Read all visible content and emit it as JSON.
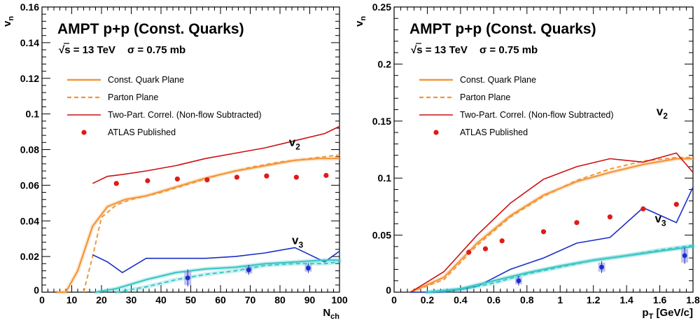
{
  "colors": {
    "quark": "#f2973a",
    "parton": "#f2973a",
    "twopart": "#cc1111",
    "atlas": "#e01a1a",
    "v3line": "#1a2ec8",
    "v3band": "#3cc6c6",
    "v3atlas": "#1a2ec8",
    "v3box": "#8c8ce6"
  },
  "chart_data": [
    {
      "type": "line",
      "title": "AMPT p+p (Const. Quarks)",
      "energy": "√s = 13 TeV",
      "sigma": "σ = 0.75 mb",
      "xlabel": "N",
      "xlabel_sub": "ch",
      "ylabel": "v",
      "ylabel_sub": "n",
      "xlim": [
        0,
        100
      ],
      "ylim": [
        0,
        0.16
      ],
      "xticks": [
        0,
        10,
        20,
        30,
        40,
        50,
        60,
        70,
        80,
        90,
        100
      ],
      "xtick_labels": [
        "0",
        "10",
        "20",
        "30",
        "40",
        "50",
        "60",
        "70",
        "80",
        "90",
        "100"
      ],
      "yticks": [
        0,
        0.02,
        0.04,
        0.06,
        0.08,
        0.1,
        0.12,
        0.14,
        0.16
      ],
      "ytick_labels": [
        "0",
        "0.02",
        "0.04",
        "0.06",
        "0.08",
        "0.1",
        "0.12",
        "0.14",
        "0.16"
      ],
      "harmonic_labels": {
        "v2": {
          "text": "v",
          "sub": "2",
          "x": 83,
          "y": 0.082
        },
        "v3": {
          "text": "v",
          "sub": "3",
          "x": 84,
          "y": 0.027
        }
      },
      "legend": [
        {
          "label": "Const. Quark Plane",
          "style": "solid",
          "series": "quark"
        },
        {
          "label": "Parton Plane",
          "style": "dashed",
          "series": "parton"
        },
        {
          "label": "Two-Part. Correl. (Non-flow Subtracted)",
          "style": "thin",
          "series": "twopart"
        },
        {
          "label": "ATLAS Published",
          "style": "marker",
          "series": "atlas"
        }
      ],
      "series": [
        {
          "name": "Const. Quark Plane",
          "harmonic": "v2",
          "kind": "solid",
          "color_key": "quark",
          "x": [
            5,
            8,
            12,
            17,
            22,
            28,
            35,
            45,
            55,
            65,
            75,
            85,
            93,
            100
          ],
          "y": [
            0.0,
            0.0,
            0.012,
            0.037,
            0.048,
            0.052,
            0.054,
            0.059,
            0.064,
            0.068,
            0.071,
            0.074,
            0.075,
            0.075
          ]
        },
        {
          "name": "Parton Plane",
          "harmonic": "v2",
          "kind": "dashed",
          "color_key": "parton",
          "x": [
            14,
            17,
            20,
            25,
            30,
            40,
            50,
            60,
            70,
            80,
            90,
            100
          ],
          "y": [
            0.0,
            0.02,
            0.042,
            0.049,
            0.052,
            0.056,
            0.061,
            0.066,
            0.07,
            0.073,
            0.075,
            0.077
          ]
        },
        {
          "name": "Two-Part. Correl. (Non-flow Subtracted)",
          "harmonic": "v2",
          "kind": "thin",
          "color_key": "twopart",
          "x": [
            17,
            22,
            27,
            35,
            45,
            55,
            65,
            75,
            85,
            95,
            100
          ],
          "y": [
            0.061,
            0.065,
            0.066,
            0.068,
            0.071,
            0.075,
            0.078,
            0.081,
            0.085,
            0.089,
            0.093
          ]
        },
        {
          "name": "Two-Part. Correl. v3",
          "harmonic": "v3",
          "kind": "thin",
          "color_key": "v3line",
          "x": [
            17,
            22,
            27,
            35,
            45,
            55,
            65,
            75,
            85,
            95,
            100
          ],
          "y": [
            0.021,
            0.017,
            0.011,
            0.019,
            0.019,
            0.019,
            0.02,
            0.022,
            0.025,
            0.017,
            0.023
          ]
        },
        {
          "name": "Const. Quark Plane v3",
          "harmonic": "v3",
          "kind": "solid",
          "color_key": "v3band",
          "x": [
            18,
            25,
            35,
            45,
            55,
            65,
            75,
            85,
            95,
            100
          ],
          "y": [
            0.0,
            0.002,
            0.007,
            0.011,
            0.013,
            0.014,
            0.016,
            0.017,
            0.018,
            0.018
          ]
        },
        {
          "name": "Parton Plane v3",
          "harmonic": "v3",
          "kind": "dashed",
          "color_key": "v3band",
          "x": [
            25,
            35,
            45,
            55,
            65,
            75,
            85,
            95,
            100
          ],
          "y": [
            0.0,
            0.003,
            0.007,
            0.01,
            0.012,
            0.015,
            0.016,
            0.016,
            0.017
          ]
        }
      ],
      "atlas": {
        "v2": {
          "x": [
            25,
            35.5,
            45.5,
            55.5,
            65.5,
            75.5,
            85.5,
            95.5
          ],
          "y": [
            0.061,
            0.0625,
            0.0635,
            0.063,
            0.0645,
            0.0652,
            0.0645,
            0.0655
          ]
        },
        "v3": {
          "x": [
            49,
            69.5,
            89.5
          ],
          "y": [
            0.008,
            0.0125,
            0.0135
          ],
          "syst": [
            0.004,
            0.002,
            0.002
          ]
        }
      }
    },
    {
      "type": "line",
      "title": "AMPT p+p (Const. Quarks)",
      "energy": "√s = 13 TeV",
      "sigma": "σ = 0.75 mb",
      "xlabel": "p",
      "xlabel_sub": "T",
      "xlabel_unit": " [GeV/c]",
      "ylabel": "v",
      "ylabel_sub": "n",
      "xlim": [
        0,
        1.8
      ],
      "ylim": [
        0,
        0.25
      ],
      "xticks": [
        0,
        0.2,
        0.4,
        0.6,
        0.8,
        1.0,
        1.2,
        1.4,
        1.6,
        1.8
      ],
      "xtick_labels": [
        "0",
        "0.2",
        "0.4",
        "0.6",
        "0.8",
        "1",
        "1.2",
        "1.4",
        "1.6",
        "1.8"
      ],
      "yticks": [
        0,
        0.05,
        0.1,
        0.15,
        0.2,
        0.25
      ],
      "ytick_labels": [
        "0",
        "0.05",
        "0.1",
        "0.15",
        "0.2",
        "0.25"
      ],
      "harmonic_labels": {
        "v2": {
          "text": "v",
          "sub": "2",
          "x": 1.58,
          "y": 0.155
        },
        "v3": {
          "text": "v",
          "sub": "3",
          "x": 1.57,
          "y": 0.061
        }
      },
      "legend": [
        {
          "label": "Const. Quark Plane",
          "style": "solid",
          "series": "quark"
        },
        {
          "label": "Parton Plane",
          "style": "dashed",
          "series": "parton"
        },
        {
          "label": "Two-Part. Correl. (Non-flow Subtracted)",
          "style": "thin",
          "series": "twopart"
        },
        {
          "label": "ATLAS Published",
          "style": "marker",
          "series": "atlas"
        }
      ],
      "series": [
        {
          "name": "Const. Quark Plane",
          "harmonic": "v2",
          "kind": "solid",
          "color_key": "quark",
          "x": [
            0.1,
            0.3,
            0.5,
            0.7,
            0.9,
            1.1,
            1.3,
            1.5,
            1.7,
            1.8
          ],
          "y": [
            0.0,
            0.013,
            0.043,
            0.067,
            0.085,
            0.097,
            0.105,
            0.112,
            0.117,
            0.117
          ]
        },
        {
          "name": "Parton Plane",
          "harmonic": "v2",
          "kind": "dashed",
          "color_key": "parton",
          "x": [
            0.1,
            0.3,
            0.5,
            0.7,
            0.9,
            1.1,
            1.3,
            1.5,
            1.7,
            1.8
          ],
          "y": [
            0.0,
            0.011,
            0.041,
            0.066,
            0.084,
            0.098,
            0.108,
            0.115,
            0.118,
            0.118
          ]
        },
        {
          "name": "Two-Part. Correl. (Non-flow Subtracted)",
          "harmonic": "v2",
          "kind": "thin",
          "color_key": "twopart",
          "x": [
            0.1,
            0.3,
            0.5,
            0.7,
            0.9,
            1.1,
            1.3,
            1.5,
            1.7,
            1.8
          ],
          "y": [
            0.0,
            0.018,
            0.05,
            0.078,
            0.099,
            0.11,
            0.117,
            0.114,
            0.122,
            0.105
          ]
        },
        {
          "name": "Two-Part. Correl. v3",
          "harmonic": "v3",
          "kind": "thin",
          "color_key": "v3line",
          "x": [
            0.1,
            0.3,
            0.5,
            0.7,
            0.9,
            1.1,
            1.3,
            1.5,
            1.7,
            1.8
          ],
          "y": [
            0.0,
            0.0,
            0.005,
            0.02,
            0.03,
            0.043,
            0.048,
            0.074,
            0.061,
            0.092
          ]
        },
        {
          "name": "Const. Quark Plane v3",
          "harmonic": "v3",
          "kind": "solid",
          "color_key": "v3band",
          "x": [
            0.2,
            0.4,
            0.6,
            0.8,
            1.0,
            1.2,
            1.4,
            1.6,
            1.8
          ],
          "y": [
            0.0,
            0.003,
            0.01,
            0.017,
            0.023,
            0.028,
            0.032,
            0.036,
            0.04
          ]
        },
        {
          "name": "Parton Plane v3",
          "harmonic": "v3",
          "kind": "dashed",
          "color_key": "v3band",
          "x": [
            0.2,
            0.4,
            0.6,
            0.8,
            1.0,
            1.2,
            1.4,
            1.6,
            1.8
          ],
          "y": [
            0.0,
            0.002,
            0.008,
            0.016,
            0.022,
            0.028,
            0.032,
            0.037,
            0.041
          ]
        }
      ],
      "atlas": {
        "v2": {
          "x": [
            0.45,
            0.55,
            0.65,
            0.9,
            1.1,
            1.3,
            1.5,
            1.7
          ],
          "y": [
            0.035,
            0.038,
            0.045,
            0.053,
            0.061,
            0.066,
            0.073,
            0.077
          ]
        },
        "v3": {
          "x": [
            0.75,
            1.25,
            1.75
          ],
          "y": [
            0.01,
            0.022,
            0.032
          ],
          "syst": [
            0.003,
            0.004,
            0.006
          ]
        }
      }
    }
  ]
}
